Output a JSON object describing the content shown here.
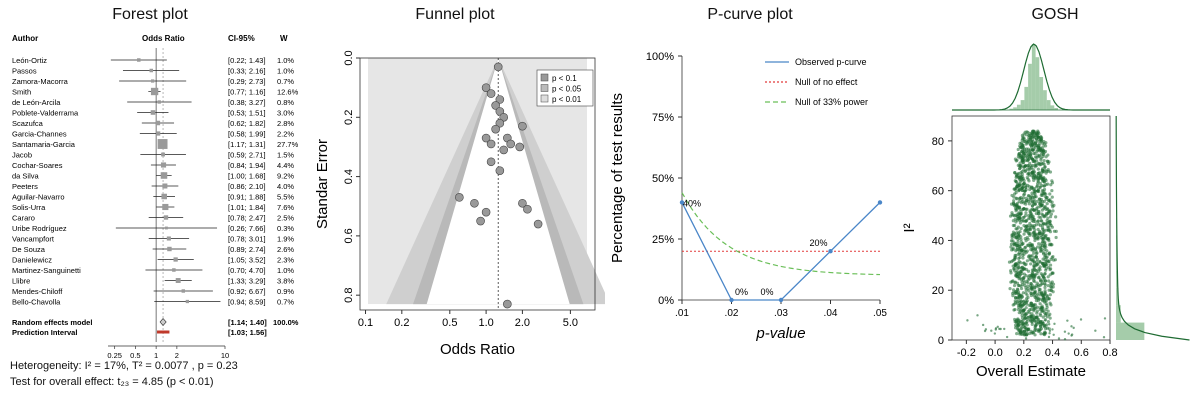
{
  "forest": {
    "title": "Forest plot",
    "col_author": "Author",
    "col_or": "Odds Ratio",
    "col_ci": "CI-95%",
    "col_w": "W",
    "xticks": [
      "0.25",
      "0.5",
      "1",
      "2",
      "10"
    ],
    "studies": [
      {
        "name": "León-Ortiz",
        "ci": "[0.22; 1.43]",
        "w": "1.0%",
        "or": 0.56,
        "lo": 0.22,
        "hi": 1.43,
        "wt": 1.0
      },
      {
        "name": "Passos",
        "ci": "[0.33; 2.16]",
        "w": "1.0%",
        "or": 0.85,
        "lo": 0.33,
        "hi": 2.16,
        "wt": 1.0
      },
      {
        "name": "Zamora-Macorra",
        "ci": "[0.29; 2.73]",
        "w": "0.7%",
        "or": 0.89,
        "lo": 0.29,
        "hi": 2.73,
        "wt": 0.7
      },
      {
        "name": "Smith",
        "ci": "[0.77; 1.16]",
        "w": "12.6%",
        "or": 0.95,
        "lo": 0.77,
        "hi": 1.16,
        "wt": 12.6
      },
      {
        "name": "de León-Arcila",
        "ci": "[0.38; 3.27]",
        "w": "0.8%",
        "or": 1.11,
        "lo": 0.38,
        "hi": 3.27,
        "wt": 0.8
      },
      {
        "name": "Poblete-Valderrama",
        "ci": "[0.53; 1.51]",
        "w": "3.0%",
        "or": 0.9,
        "lo": 0.53,
        "hi": 1.51,
        "wt": 3.0
      },
      {
        "name": "Scazufca",
        "ci": "[0.62; 1.82]",
        "w": "2.8%",
        "or": 1.06,
        "lo": 0.62,
        "hi": 1.82,
        "wt": 2.8
      },
      {
        "name": "Garcia-Channes",
        "ci": "[0.58; 1.99]",
        "w": "2.2%",
        "or": 1.07,
        "lo": 0.58,
        "hi": 1.99,
        "wt": 2.2
      },
      {
        "name": "Santamaria-Garcia",
        "ci": "[1.17; 1.31]",
        "w": "27.7%",
        "or": 1.24,
        "lo": 1.17,
        "hi": 1.31,
        "wt": 27.7
      },
      {
        "name": "Jacob",
        "ci": "[0.59; 2.71]",
        "w": "1.5%",
        "or": 1.26,
        "lo": 0.59,
        "hi": 2.71,
        "wt": 1.5
      },
      {
        "name": "Cochar-Soares",
        "ci": "[0.84; 1.94]",
        "w": "4.4%",
        "or": 1.28,
        "lo": 0.84,
        "hi": 1.94,
        "wt": 4.4
      },
      {
        "name": "da Silva",
        "ci": "[1.00; 1.68]",
        "w": "9.2%",
        "or": 1.3,
        "lo": 1.0,
        "hi": 1.68,
        "wt": 9.2
      },
      {
        "name": "Peeters",
        "ci": "[0.86; 2.10]",
        "w": "4.0%",
        "or": 1.34,
        "lo": 0.86,
        "hi": 2.1,
        "wt": 4.0
      },
      {
        "name": "Aguilar-Navarro",
        "ci": "[0.91; 1.88]",
        "w": "5.5%",
        "or": 1.31,
        "lo": 0.91,
        "hi": 1.88,
        "wt": 5.5
      },
      {
        "name": "Solis-Urra",
        "ci": "[1.01; 1.84]",
        "w": "7.6%",
        "or": 1.36,
        "lo": 1.01,
        "hi": 1.84,
        "wt": 7.6
      },
      {
        "name": "Cararo",
        "ci": "[0.78; 2.47]",
        "w": "2.5%",
        "or": 1.39,
        "lo": 0.78,
        "hi": 2.47,
        "wt": 2.5
      },
      {
        "name": "Uribe Rodríguez",
        "ci": "[0.26; 7.66]",
        "w": "0.3%",
        "or": 1.41,
        "lo": 0.26,
        "hi": 7.66,
        "wt": 0.3
      },
      {
        "name": "Vancampfort",
        "ci": "[0.78; 3.01]",
        "w": "1.9%",
        "or": 1.53,
        "lo": 0.78,
        "hi": 3.01,
        "wt": 1.9
      },
      {
        "name": "De Souza",
        "ci": "[0.89; 2.74]",
        "w": "2.6%",
        "or": 1.56,
        "lo": 0.89,
        "hi": 2.74,
        "wt": 2.6
      },
      {
        "name": "Danielewicz",
        "ci": "[1.05; 3.52]",
        "w": "2.3%",
        "or": 1.92,
        "lo": 1.05,
        "hi": 3.52,
        "wt": 2.3
      },
      {
        "name": "Martinez-Sanguinetti",
        "ci": "[0.70; 4.70]",
        "w": "1.0%",
        "or": 1.81,
        "lo": 0.7,
        "hi": 4.7,
        "wt": 1.0
      },
      {
        "name": "Llibre",
        "ci": "[1.33; 3.29]",
        "w": "3.8%",
        "or": 2.09,
        "lo": 1.33,
        "hi": 3.29,
        "wt": 3.8
      },
      {
        "name": "Mendes-Chiloff",
        "ci": "[0.92; 6.67]",
        "w": "0.9%",
        "or": 2.48,
        "lo": 0.92,
        "hi": 6.67,
        "wt": 0.9
      },
      {
        "name": "Bello-Chavolla",
        "ci": "[0.94; 8.59]",
        "w": "0.7%",
        "or": 2.84,
        "lo": 0.94,
        "hi": 8.59,
        "wt": 0.7
      }
    ],
    "re_label": "Random effects model",
    "re_ci": "[1.14; 1.40]",
    "re_w": "100.0%",
    "re": {
      "or": 1.26,
      "lo": 1.14,
      "hi": 1.4
    },
    "pi_label": "Prediction Interval",
    "pi_ci": "[1.03; 1.56]",
    "pi": {
      "lo": 1.03,
      "hi": 1.56
    },
    "het_text": "Heterogeneity: I² = 17%, Τ² = 0.0077 , p = 0.23",
    "test_text": "Test for overall effect: t₂₃ = 4.85 (p < 0.01)"
  },
  "funnel": {
    "title": "Funnel plot",
    "xlabel": "Odds Ratio",
    "ylabel": "Standar Error",
    "xticks": [
      "0.1",
      "0.2",
      "0.5",
      "1.0",
      "2.0",
      "5.0"
    ],
    "yticks": [
      "0.0",
      "0.2",
      "0.4",
      "0.6",
      "0.8"
    ],
    "legend": [
      "p < 0.1",
      "p < 0.05",
      "p < 0.01"
    ],
    "points": [
      [
        1.26,
        0.03
      ],
      [
        1.0,
        0.1
      ],
      [
        1.1,
        0.12
      ],
      [
        1.3,
        0.14
      ],
      [
        1.2,
        0.16
      ],
      [
        1.3,
        0.18
      ],
      [
        1.4,
        0.2
      ],
      [
        1.3,
        0.22
      ],
      [
        2.0,
        0.23
      ],
      [
        1.2,
        0.24
      ],
      [
        1.5,
        0.27
      ],
      [
        1.0,
        0.27
      ],
      [
        1.1,
        0.29
      ],
      [
        1.6,
        0.29
      ],
      [
        1.9,
        0.3
      ],
      [
        1.4,
        0.31
      ],
      [
        1.1,
        0.35
      ],
      [
        1.3,
        0.38
      ],
      [
        0.6,
        0.47
      ],
      [
        0.8,
        0.49
      ],
      [
        2.0,
        0.49
      ],
      [
        2.2,
        0.51
      ],
      [
        1.0,
        0.52
      ],
      [
        0.9,
        0.55
      ],
      [
        2.7,
        0.56
      ],
      [
        1.5,
        0.83
      ]
    ],
    "center": 1.26
  },
  "pcurve": {
    "title": "P-curve plot",
    "xlabel": "p-value",
    "ylabel": "Percentage of test results",
    "yticks": [
      "0%",
      "25%",
      "50%",
      "75%",
      "100%"
    ],
    "xticks": [
      ".01",
      ".02",
      ".03",
      ".04",
      ".05"
    ],
    "legend": [
      "Observed p-curve",
      "Null of no effect",
      "Null of 33% power"
    ],
    "observed": [
      40,
      0,
      0,
      20,
      40
    ],
    "labels": [
      "40%",
      "0%",
      "0%",
      "20%"
    ],
    "null_effect": 20,
    "null33": [
      44,
      20,
      15,
      12,
      10
    ]
  },
  "gosh": {
    "title": "GOSH",
    "xlabel": "Overall Estimate",
    "ylabel": "I²",
    "xticks": [
      "-0.2",
      "0.0",
      "0.2",
      "0.4",
      "0.6",
      "0.8"
    ],
    "yticks": [
      "0",
      "20",
      "40",
      "60",
      "80"
    ],
    "color": "#1e6b32"
  },
  "chart_data": [
    {
      "type": "forest",
      "title": "Forest plot",
      "note": "study values listed in forest.studies"
    },
    {
      "type": "scatter",
      "title": "Funnel plot",
      "xlabel": "Odds Ratio",
      "ylabel": "Standar Error",
      "ylim": [
        0,
        0.85
      ]
    },
    {
      "type": "line",
      "title": "P-curve plot",
      "x": [
        0.01,
        0.02,
        0.03,
        0.04,
        0.05
      ],
      "series": [
        {
          "name": "Observed p-curve",
          "values": [
            40,
            0,
            0,
            20,
            40
          ]
        },
        {
          "name": "Null of no effect",
          "values": [
            20,
            20,
            20,
            20,
            20
          ]
        },
        {
          "name": "Null of 33% power",
          "values": [
            44,
            20,
            15,
            12,
            10
          ]
        }
      ],
      "xlabel": "p-value",
      "ylabel": "Percentage of test results",
      "ylim": [
        0,
        100
      ]
    },
    {
      "type": "scatter",
      "title": "GOSH",
      "xlabel": "Overall Estimate",
      "ylabel": "I²",
      "xlim": [
        -0.3,
        0.8
      ],
      "ylim": [
        0,
        90
      ]
    }
  ]
}
